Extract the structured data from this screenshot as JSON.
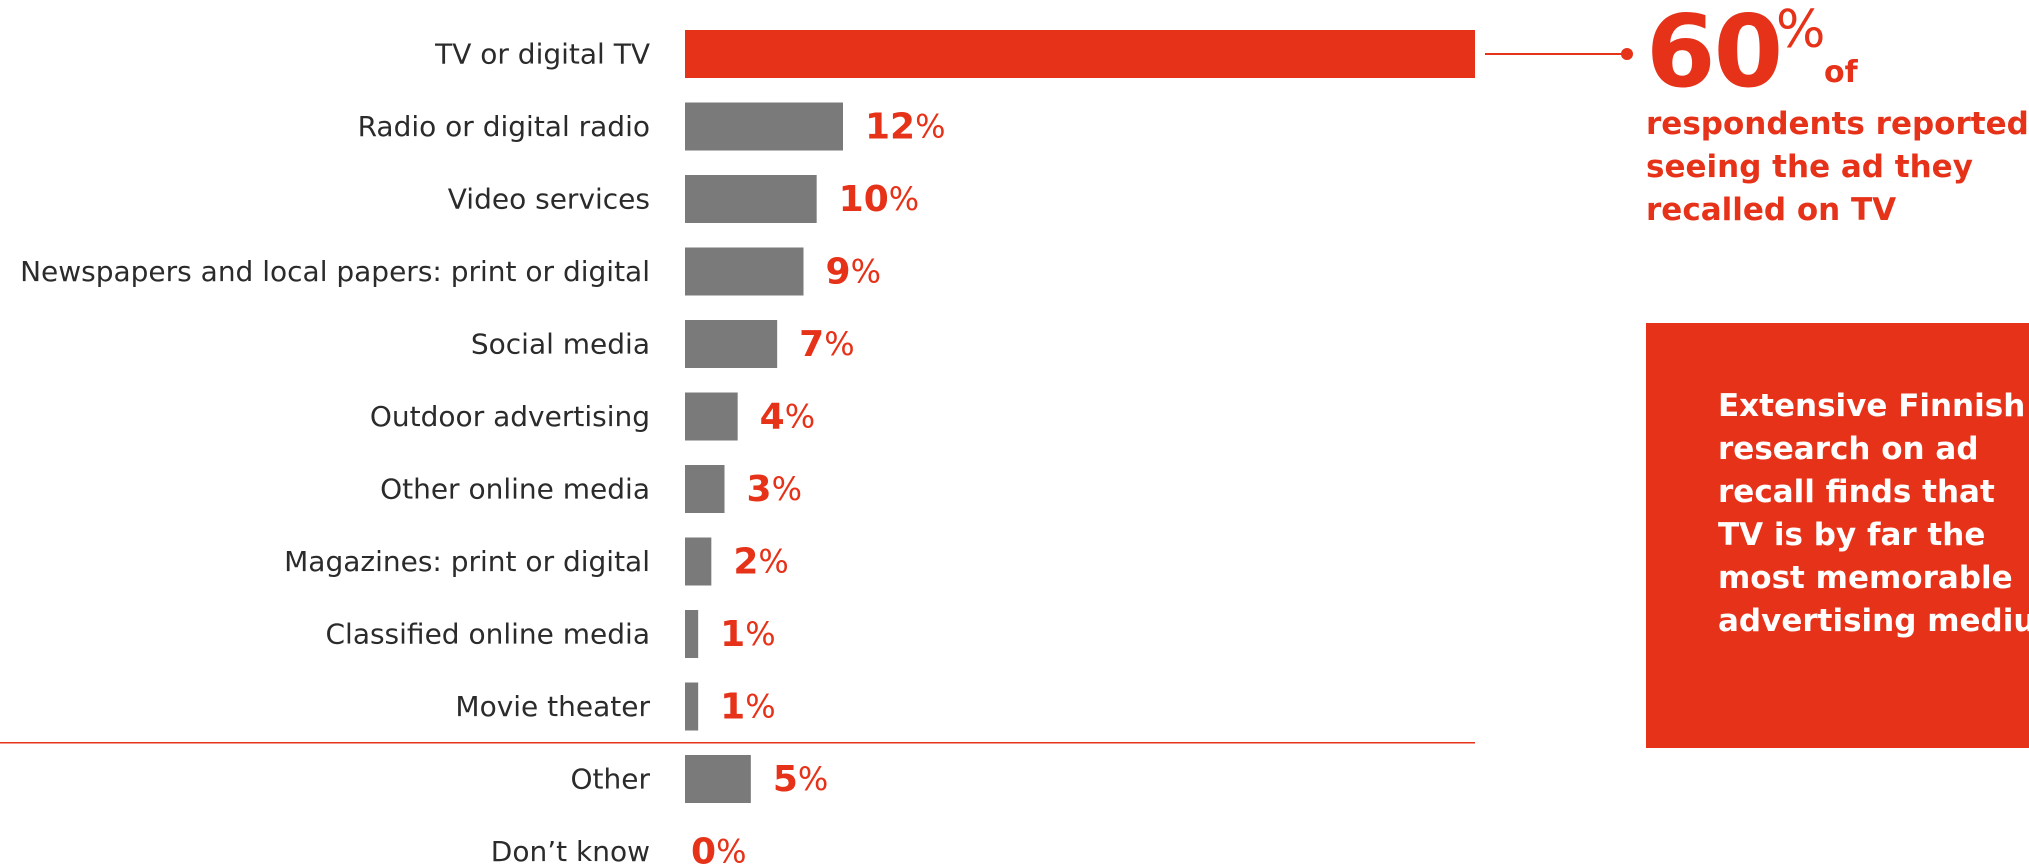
{
  "chart_data": {
    "type": "bar",
    "orientation": "horizontal",
    "categories": [
      "TV or digital TV",
      "Radio or digital radio",
      "Video services",
      "Newspapers and local papers: print or digital",
      "Social media",
      "Outdoor advertising",
      "Other online media",
      "Magazines: print or digital",
      "Classified online media",
      "Movie theater",
      "Other",
      "Don’t know"
    ],
    "values": [
      60,
      12,
      10,
      9,
      7,
      4,
      3,
      2,
      1,
      1,
      5,
      0
    ],
    "value_labels": [
      "",
      "12",
      "10",
      "9",
      "7",
      "4",
      "3",
      "2",
      "1",
      "1",
      "5",
      "0"
    ],
    "value_suffix": "%",
    "xlim": [
      0,
      60
    ],
    "title": "",
    "xlabel": "",
    "ylabel": "",
    "grid": false,
    "separator_after_category": "Movie theater"
  },
  "colors": {
    "highlight_bar": "#e63219",
    "bar": "#7a7a7a",
    "accent": "#e63219",
    "label_text": "#2b2b2b"
  },
  "callout": {
    "big_value": "60",
    "big_suffix": "%",
    "of_text": "of",
    "text": "respondents reported seeing the ad they recalled on TV"
  },
  "info_box": {
    "text_lines": [
      "Extensive Finnish",
      "research on ad",
      "recall finds that",
      "TV is by far the",
      "most memorable",
      "advertising medium"
    ]
  }
}
